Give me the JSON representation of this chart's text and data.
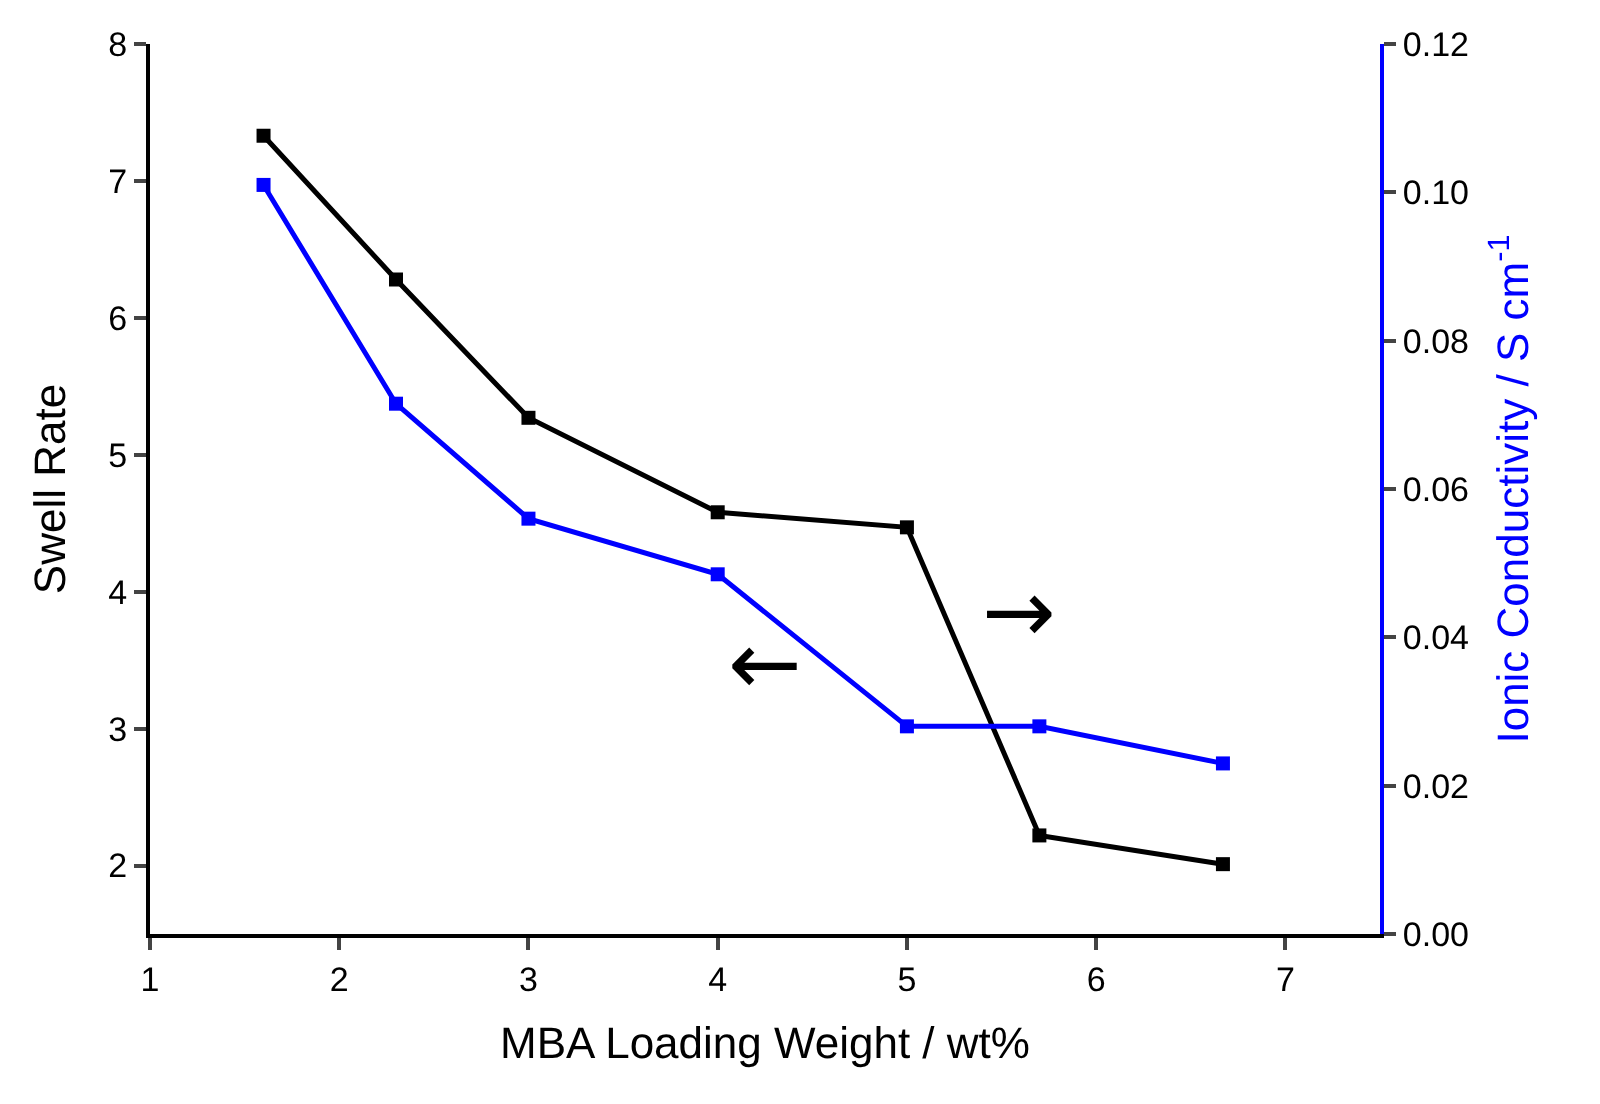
{
  "chart_data": {
    "type": "line",
    "xlabel": "MBA Loading Weight / wt%",
    "ylabel": "Swell Rate",
    "y2label": "Ionic Conductivity / S cm$^{-1}$",
    "x": [
      1.6,
      2.3,
      3,
      4,
      5,
      5.7,
      6.67
    ],
    "series": [
      {
        "color": "#000000",
        "values": [
          7.33,
          6.28,
          5.27,
          4.58,
          4.47,
          2.22,
          2.01
        ]
      },
      {
        "color": "#0000ff",
        "axis": "y2",
        "values": [
          0.101,
          0.0715,
          0.056,
          0.0485,
          0.028,
          0.028,
          0.023
        ]
      }
    ],
    "xlim": [
      1,
      7.5
    ],
    "xticks": [
      1,
      2,
      3,
      4,
      5,
      6,
      7
    ],
    "ylim": [
      1.5,
      8
    ],
    "yticks": [
      2,
      3,
      4,
      5,
      6,
      7,
      8
    ],
    "y2lim": [
      0,
      0.12
    ],
    "y2ticks": [
      {
        "value": 0,
        "label": "0.00"
      },
      {
        "value": 0.02,
        "label": "0.02"
      },
      {
        "value": 0.04,
        "label": "0.04"
      },
      {
        "value": 0.06,
        "label": "0.06"
      },
      {
        "value": 0.08,
        "label": "0.08"
      },
      {
        "value": 0.1,
        "label": "0.10"
      },
      {
        "value": 0.12,
        "label": "0.12"
      }
    ],
    "annotations": [
      "←",
      "→"
    ],
    "marker": "square",
    "line_style": "solid"
  }
}
